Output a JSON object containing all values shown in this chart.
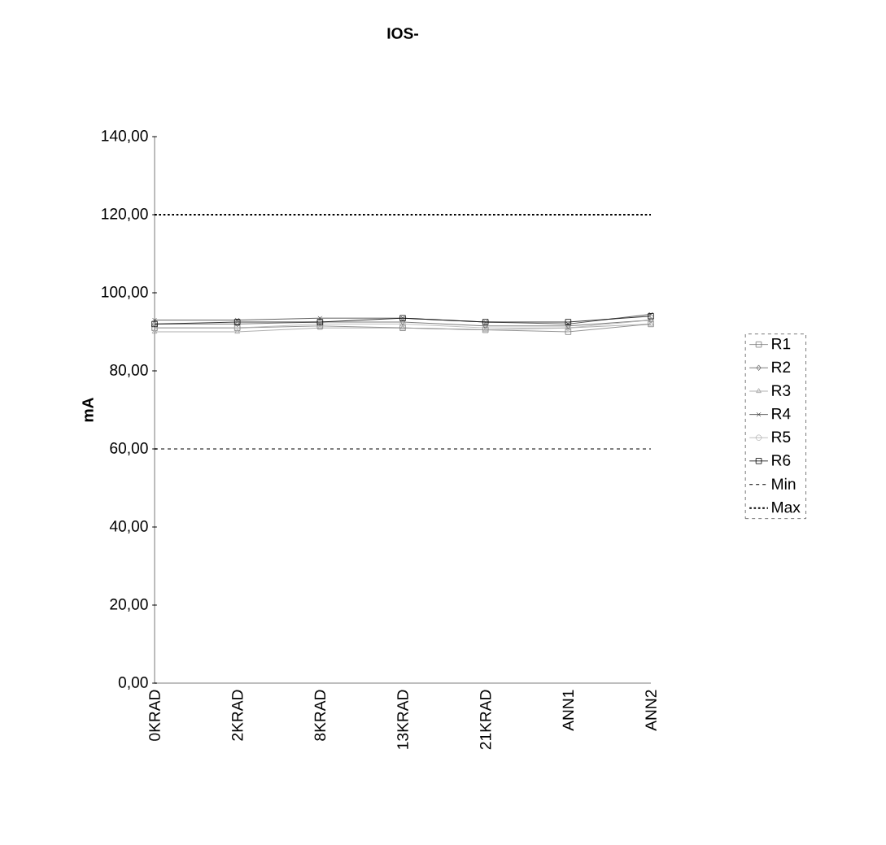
{
  "chart_data": {
    "type": "line",
    "title": "IOS-",
    "ylabel": "mA",
    "categories": [
      "0KRAD",
      "2KRAD",
      "8KRAD",
      "13KRAD",
      "21KRAD",
      "ANN1",
      "ANN2"
    ],
    "series": [
      {
        "name": "R1",
        "color": "#7a7a7a",
        "marker": "square",
        "values": [
          91,
          91,
          91.5,
          91,
          90.5,
          90,
          92
        ]
      },
      {
        "name": "R2",
        "color": "#5a5a5a",
        "marker": "diamond",
        "values": [
          92,
          92,
          92.5,
          92.5,
          91.5,
          91.5,
          93
        ]
      },
      {
        "name": "R3",
        "color": "#9a9a9a",
        "marker": "triangle",
        "values": [
          90,
          90,
          91,
          91,
          90.5,
          91,
          92
        ]
      },
      {
        "name": "R4",
        "color": "#3a3a3a",
        "marker": "cross",
        "values": [
          93,
          93,
          93.5,
          93.5,
          92.5,
          92,
          94.5
        ]
      },
      {
        "name": "R5",
        "color": "#b0b0b0",
        "marker": "circle",
        "values": [
          91,
          91,
          92,
          92,
          91,
          91,
          93
        ]
      },
      {
        "name": "R6",
        "color": "#000000",
        "marker": "square",
        "values": [
          92,
          92.5,
          92.5,
          93.5,
          92.5,
          92.5,
          94
        ]
      },
      {
        "name": "Min",
        "color": "#000000",
        "marker": "none",
        "line_style": "dashed",
        "values": [
          60,
          60,
          60,
          60,
          60,
          60,
          60
        ]
      },
      {
        "name": "Max",
        "color": "#000000",
        "marker": "none",
        "line_style": "dotted",
        "values": [
          120,
          120,
          120,
          120,
          120,
          120,
          120
        ]
      }
    ],
    "ylim": [
      0,
      140
    ],
    "yticks": [
      {
        "value": 0,
        "label": "0,00"
      },
      {
        "value": 20,
        "label": "20,00"
      },
      {
        "value": 40,
        "label": "40,00"
      },
      {
        "value": 60,
        "label": "60,00"
      },
      {
        "value": 80,
        "label": "80,00"
      },
      {
        "value": 100,
        "label": "100,00"
      },
      {
        "value": 120,
        "label": "120,00"
      },
      {
        "value": 140,
        "label": "140,00"
      }
    ],
    "grid": false,
    "legend": "right"
  }
}
